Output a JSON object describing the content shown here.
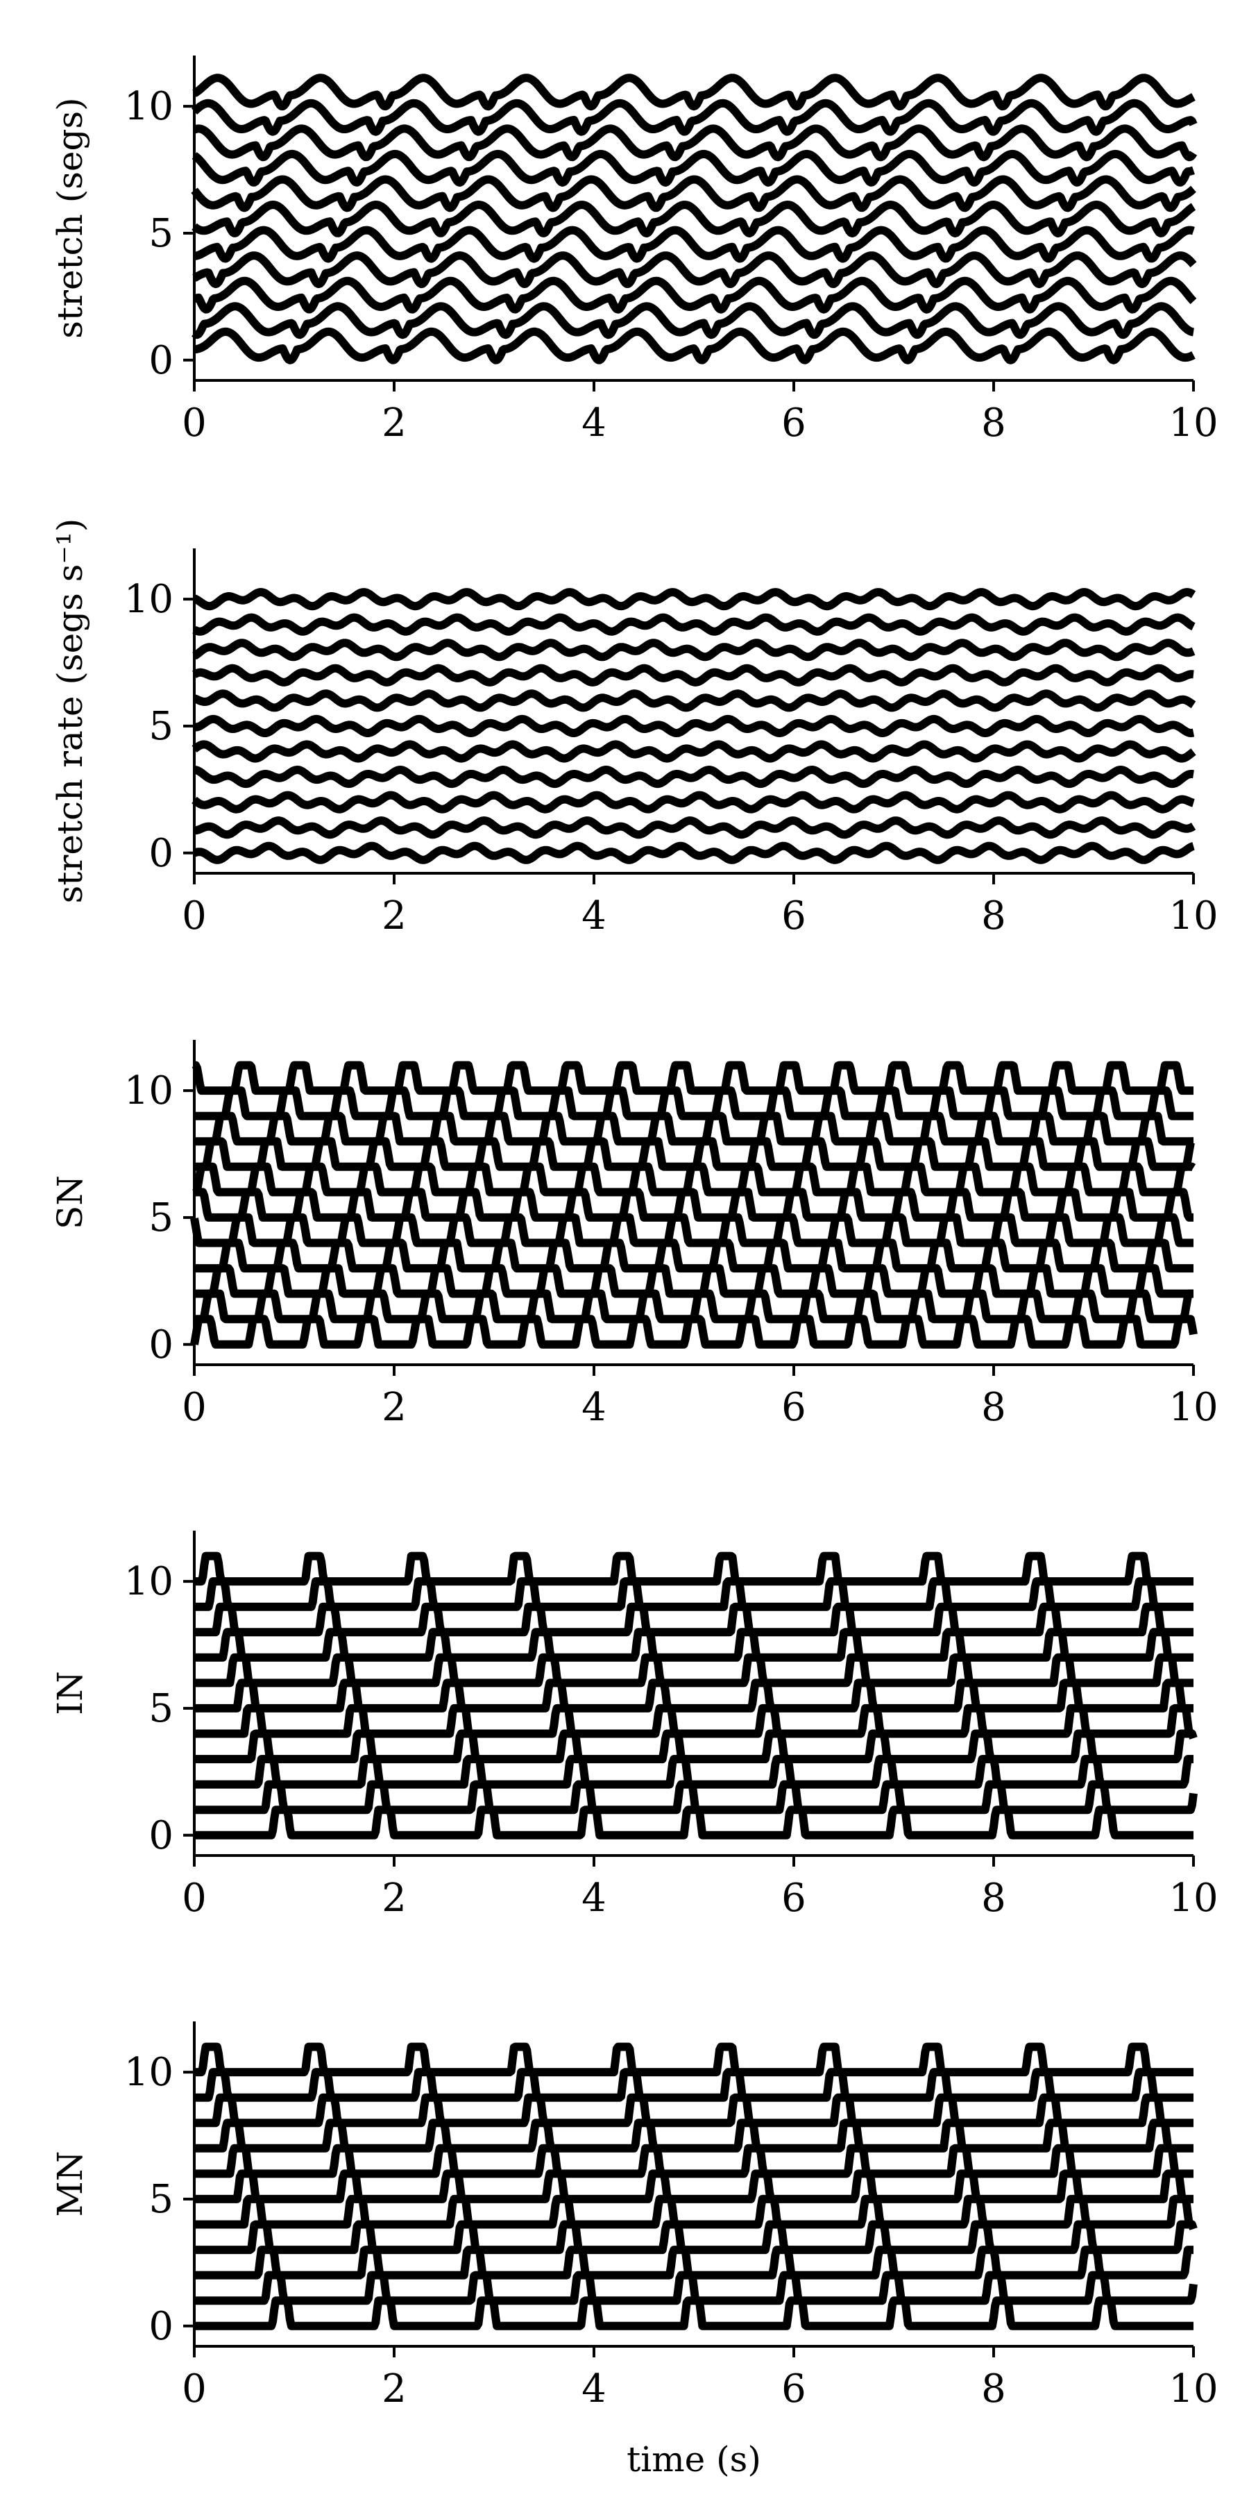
{
  "chart_data": [
    {
      "type": "line",
      "kind": "stretch",
      "ylabel": "stretch (segs)",
      "xlabel": "",
      "xlim": [
        0,
        10
      ],
      "ylim": [
        -0.8,
        12
      ],
      "xticks": [
        0,
        2,
        4,
        6,
        8,
        10
      ],
      "yticks": [
        0,
        5,
        10
      ],
      "grid": false,
      "series_count": 11,
      "line_color": "#000000"
    },
    {
      "type": "line",
      "kind": "stretch_rate",
      "ylabel": "stretch rate (segs s⁻¹)",
      "xlabel": "",
      "xlim": [
        0,
        10
      ],
      "ylim": [
        -0.8,
        12
      ],
      "xticks": [
        0,
        2,
        4,
        6,
        8,
        10
      ],
      "yticks": [
        0,
        5,
        10
      ],
      "grid": false,
      "series_count": 11,
      "line_color": "#000000"
    },
    {
      "type": "line",
      "kind": "sn",
      "ylabel": "SN",
      "xlabel": "",
      "xlim": [
        0,
        10
      ],
      "ylim": [
        -0.8,
        12
      ],
      "xticks": [
        0,
        2,
        4,
        6,
        8,
        10
      ],
      "yticks": [
        0,
        5,
        10
      ],
      "grid": false,
      "series_count": 11,
      "line_color": "#000000"
    },
    {
      "type": "line",
      "kind": "in",
      "ylabel": "IN",
      "xlabel": "",
      "xlim": [
        0,
        10
      ],
      "ylim": [
        -0.8,
        12
      ],
      "xticks": [
        0,
        2,
        4,
        6,
        8,
        10
      ],
      "yticks": [
        0,
        5,
        10
      ],
      "grid": false,
      "series_count": 11,
      "line_color": "#000000"
    },
    {
      "type": "line",
      "kind": "mn",
      "ylabel": "MN",
      "xlabel": "time (s)",
      "xlim": [
        0,
        10
      ],
      "ylim": [
        -0.8,
        12
      ],
      "xticks": [
        0,
        2,
        4,
        6,
        8,
        10
      ],
      "yticks": [
        0,
        5,
        10
      ],
      "grid": false,
      "series_count": 11,
      "line_color": "#000000"
    }
  ]
}
